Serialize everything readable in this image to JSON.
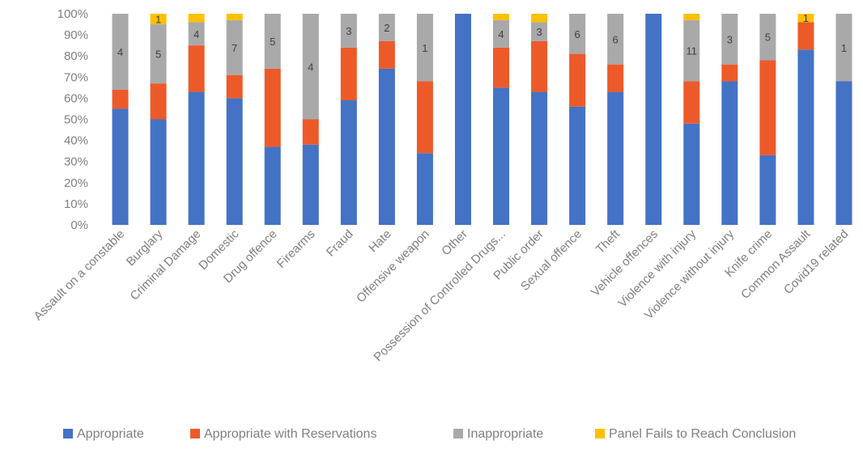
{
  "chart_data": {
    "type": "bar",
    "stacked": true,
    "percent_stacked": true,
    "title": "",
    "xlabel": "",
    "ylabel": "",
    "ylim": [
      0,
      100
    ],
    "yticks": [
      "0%",
      "10%",
      "20%",
      "30%",
      "40%",
      "50%",
      "60%",
      "70%",
      "80%",
      "90%",
      "100%"
    ],
    "grid": false,
    "legend_position": "bottom",
    "categories": [
      "Assault on a constable",
      "Burglary",
      "Criminal Damage",
      "Domestic",
      "Drug offence",
      "Firearms",
      "Fraud",
      "Hate",
      "Offensive weapon",
      "Other",
      "Possession of Controlled Drugs...",
      "Public order",
      "Sexual offence",
      "Theft",
      "Vehicle offences",
      "Violence with injury",
      "Violence without injury",
      "Knife crime",
      "Common Assault",
      "Covid19 related"
    ],
    "series": [
      {
        "name": "Appropriate",
        "color": "#4472c4",
        "values": [
          55,
          50,
          63,
          60,
          37,
          38,
          59,
          74,
          34,
          100,
          65,
          63,
          56,
          63,
          100,
          48,
          68,
          33,
          83,
          68
        ]
      },
      {
        "name": "Appropriate with Reservations",
        "color": "#ed5a2a",
        "values": [
          9,
          17,
          22,
          11,
          37,
          12,
          25,
          13,
          34,
          0,
          19,
          24,
          25,
          13,
          0,
          20,
          8,
          45,
          13,
          0
        ]
      },
      {
        "name": "Inappropriate",
        "color": "#a9a9a9",
        "values": [
          36,
          28,
          11,
          26,
          26,
          50,
          16,
          13,
          32,
          0,
          13,
          9,
          19,
          24,
          0,
          29,
          24,
          22,
          0,
          32
        ]
      },
      {
        "name": "Panel Fails to Reach Conclusion",
        "color": "#ffc000",
        "values": [
          0,
          5,
          4,
          3,
          0,
          0,
          0,
          0,
          0,
          0,
          3,
          4,
          0,
          0,
          0,
          3,
          0,
          0,
          4,
          0
        ]
      }
    ],
    "data_labels": [
      {
        "category_index": 0,
        "series_index": 2,
        "text": "4"
      },
      {
        "category_index": 1,
        "series_index": 2,
        "text": "5"
      },
      {
        "category_index": 1,
        "series_index": 3,
        "text": "1"
      },
      {
        "category_index": 2,
        "series_index": 2,
        "text": "4"
      },
      {
        "category_index": 3,
        "series_index": 2,
        "text": "7"
      },
      {
        "category_index": 4,
        "series_index": 2,
        "text": "5"
      },
      {
        "category_index": 5,
        "series_index": 2,
        "text": "4"
      },
      {
        "category_index": 6,
        "series_index": 2,
        "text": "3"
      },
      {
        "category_index": 7,
        "series_index": 2,
        "text": "2"
      },
      {
        "category_index": 8,
        "series_index": 2,
        "text": "1"
      },
      {
        "category_index": 10,
        "series_index": 2,
        "text": "4"
      },
      {
        "category_index": 11,
        "series_index": 2,
        "text": "3"
      },
      {
        "category_index": 12,
        "series_index": 2,
        "text": "6"
      },
      {
        "category_index": 13,
        "series_index": 2,
        "text": "6"
      },
      {
        "category_index": 15,
        "series_index": 2,
        "text": "11"
      },
      {
        "category_index": 16,
        "series_index": 2,
        "text": "3"
      },
      {
        "category_index": 17,
        "series_index": 2,
        "text": "5"
      },
      {
        "category_index": 18,
        "series_index": 3,
        "text": "1"
      },
      {
        "category_index": 19,
        "series_index": 2,
        "text": "1"
      }
    ]
  }
}
